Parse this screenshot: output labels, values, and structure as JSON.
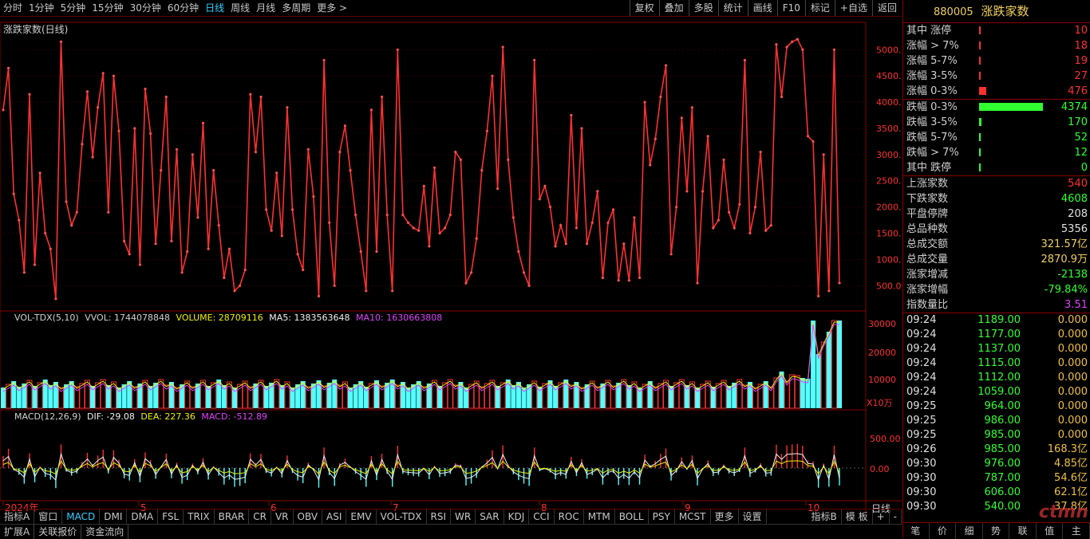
{
  "toolbar": {
    "periods": [
      "分时",
      "1分钟",
      "5分钟",
      "15分钟",
      "30分钟",
      "60分钟",
      "日线",
      "周线",
      "月线",
      "多周期",
      "更多 >"
    ],
    "active_period": "日线",
    "right_buttons": [
      "复权",
      "叠加",
      "多股",
      "统计",
      "画线",
      "F10",
      "标记",
      "+自选",
      "返回"
    ]
  },
  "main_chart": {
    "title": "涨跌家数(日线)",
    "y_ticks": [
      "5000.00",
      "4500.00",
      "4000.00",
      "3500.00",
      "3000.00",
      "2500.00",
      "2000.00",
      "1500.00",
      "1000.00",
      "500.00"
    ],
    "line_color": "#ff3030"
  },
  "volume": {
    "label_name": "VOL-TDX(5,10)",
    "label_vvol": "VVOL: 1744078848",
    "label_volume": "VOLUME: 28709116",
    "label_ma5": "MA5: 1383563648",
    "label_ma10": "MA10: 1630663808",
    "y_ticks": [
      "30000",
      "20000",
      "10000"
    ],
    "unit": "X10万"
  },
  "macd": {
    "label_name": "MACD(12,26,9)",
    "label_dif": "DIF: -29.08",
    "label_dea": "DEA: 227.36",
    "label_macd": "MACD: -512.89",
    "y_ticks": [
      "500.00",
      "0.00"
    ]
  },
  "x_axis": {
    "labels": [
      "2024年",
      "5",
      "6",
      "7",
      "8",
      "9",
      "10"
    ],
    "period_label": "日线"
  },
  "chart_data": {
    "type": "line",
    "title": "涨跌家数(日线)",
    "ylim": [
      200,
      5400
    ],
    "y_ticks": [
      500,
      1000,
      1500,
      2000,
      2500,
      3000,
      3500,
      4000,
      4500,
      5000
    ],
    "x_month_labels": [
      "5",
      "6",
      "7",
      "8",
      "9",
      "10"
    ],
    "values": [
      3850,
      4650,
      2250,
      1750,
      750,
      4150,
      900,
      2650,
      1500,
      1200,
      250,
      5150,
      2100,
      1650,
      1900,
      3200,
      4200,
      2950,
      3900,
      4550,
      1900,
      4500,
      3450,
      1350,
      1100,
      3500,
      900,
      4250,
      3400,
      1300,
      2700,
      4100,
      1350,
      3100,
      750,
      1150,
      3000,
      1800,
      3600,
      1200,
      2700,
      1650,
      650,
      1200,
      400,
      500,
      800,
      4150,
      3050,
      4100,
      1950,
      1550,
      2650,
      1450,
      3900,
      1950,
      1100,
      800,
      3100,
      2200,
      300,
      4800,
      1700,
      500,
      3050,
      3550,
      2700,
      1850,
      1150,
      400,
      3850,
      1150,
      4100,
      1850,
      400,
      5000,
      1850,
      1700,
      1600,
      1550,
      2400,
      1250,
      2750,
      1500,
      1600,
      1850,
      3050,
      2900,
      550,
      750,
      1400,
      2700,
      3450,
      4500,
      2350,
      5050,
      2900,
      1800,
      1150,
      750,
      500,
      4800,
      2150,
      2400,
      2000,
      1250,
      1650,
      1300,
      3750,
      1600,
      3500,
      1300,
      1700,
      2300,
      650,
      1700,
      1950,
      600,
      1300,
      600,
      1800,
      650,
      4000,
      2800,
      3300,
      4100,
      4700,
      1100,
      2000,
      3700,
      2300,
      3900,
      550,
      2300,
      3350,
      1600,
      1750,
      2900,
      1900,
      1600,
      2050,
      4800,
      1500,
      2000,
      3050,
      1550,
      1650,
      5100,
      4100,
      5050,
      5150,
      5200,
      5000,
      3350,
      3250,
      300,
      3000,
      400,
      5000,
      550
    ]
  },
  "right_panel": {
    "code": "880005",
    "name": "涨跌家数",
    "up_rows": [
      {
        "k": "其中 涨停",
        "v": "10",
        "frac": 0.002
      },
      {
        "k": "涨幅 > 7%",
        "v": "18",
        "frac": 0.004
      },
      {
        "k": "涨幅 5-7%",
        "v": "19",
        "frac": 0.004
      },
      {
        "k": "涨幅 3-5%",
        "v": "27",
        "frac": 0.006
      },
      {
        "k": "涨幅 0-3%",
        "v": "476",
        "frac": 0.11
      }
    ],
    "down_rows": [
      {
        "k": "跌幅 0-3%",
        "v": "4374",
        "frac": 1.0
      },
      {
        "k": "跌幅 3-5%",
        "v": "170",
        "frac": 0.039
      },
      {
        "k": "跌幅 5-7%",
        "v": "52",
        "frac": 0.012
      },
      {
        "k": "跌幅 > 7%",
        "v": "12",
        "frac": 0.003
      },
      {
        "k": "其中 跌停",
        "v": "0",
        "frac": 0.001
      }
    ],
    "stats": [
      {
        "k": "上涨家数",
        "v": "540",
        "c": "#ff3030"
      },
      {
        "k": "下跌家数",
        "v": "4608",
        "c": "#30ff30"
      },
      {
        "k": "平盘停牌",
        "v": "208",
        "c": "#e0e0e0"
      },
      {
        "k": "总品种数",
        "v": "5356",
        "c": "#e0e0e0"
      },
      {
        "k": "总成交额",
        "v": "321.57亿",
        "c": "#f0d060"
      },
      {
        "k": "总成交量",
        "v": "2870.9万",
        "c": "#f0d060"
      },
      {
        "k": "涨家增减",
        "v": "-2138",
        "c": "#30ff30"
      },
      {
        "k": "涨家增幅",
        "v": "-79.84%",
        "c": "#30ff30"
      },
      {
        "k": "指数量比",
        "v": "3.51",
        "c": "#e040ff"
      }
    ],
    "ticks": [
      {
        "t": "09:24",
        "p": "1189.00",
        "a": "0.000"
      },
      {
        "t": "09:24",
        "p": "1177.00",
        "a": "0.000"
      },
      {
        "t": "09:24",
        "p": "1137.00",
        "a": "0.000"
      },
      {
        "t": "09:24",
        "p": "1115.00",
        "a": "0.000"
      },
      {
        "t": "09:24",
        "p": "1112.00",
        "a": "0.000"
      },
      {
        "t": "09:24",
        "p": "1059.00",
        "a": "0.000"
      },
      {
        "t": "09:25",
        "p": "964.00",
        "a": "0.000"
      },
      {
        "t": "09:25",
        "p": "986.00",
        "a": "0.000"
      },
      {
        "t": "09:25",
        "p": "985.00",
        "a": "0.000"
      },
      {
        "t": "09:26",
        "p": "985.00",
        "a": "168.3亿"
      },
      {
        "t": "09:30",
        "p": "976.00",
        "a": "4.85亿"
      },
      {
        "t": "09:30",
        "p": "787.00",
        "a": "54.6亿"
      },
      {
        "t": "09:30",
        "p": "606.00",
        "a": "62.1亿"
      },
      {
        "t": "09:30",
        "p": "540.00",
        "a": "37.8亿"
      }
    ],
    "bottom_tabs": [
      "笔",
      "价",
      "细",
      "势",
      "联",
      "值",
      "主"
    ]
  },
  "indicator_tabs": [
    "指标A",
    "窗口",
    "MACD",
    "DMI",
    "DMA",
    "FSL",
    "TRIX",
    "BRAR",
    "CR",
    "VR",
    "OBV",
    "ASI",
    "EMV",
    "VOL-TDX",
    "RSI",
    "WR",
    "SAR",
    "KDJ",
    "CCI",
    "ROC",
    "MTM",
    "BOLL",
    "PSY",
    "MCST",
    "更多",
    "设置"
  ],
  "indicator_tabs_right": [
    "指标B",
    "模 板",
    "+",
    "-"
  ],
  "active_indicator": "MACD",
  "status_tabs": [
    "扩展A",
    "关联报价",
    "资金流向"
  ],
  "watermark": "ctmn"
}
